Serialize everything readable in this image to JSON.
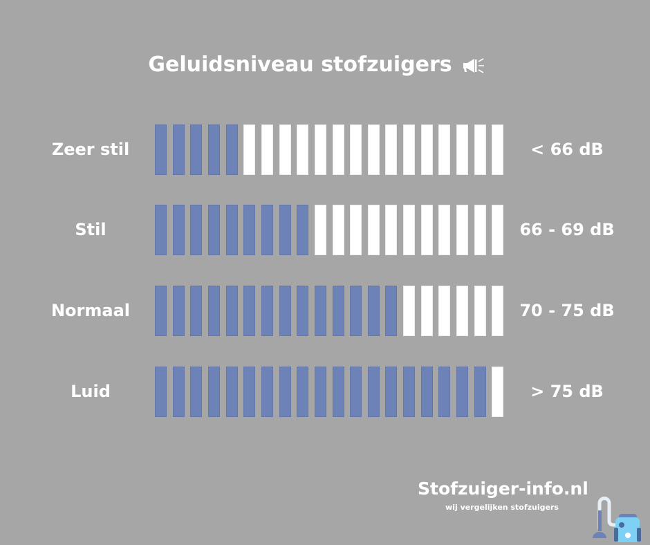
{
  "chart_data": {
    "type": "bar",
    "title": "Geluidsniveau stofzuigers",
    "title_icon": "megaphone-icon",
    "total_segments": 20,
    "categories": [
      "Zeer stil",
      "Stil",
      "Normaal",
      "Luid"
    ],
    "values": [
      5,
      9,
      14,
      19
    ],
    "range_labels": [
      "< 66 dB",
      "66 - 69 dB",
      "70 - 75 dB",
      "> 75 dB"
    ],
    "colors": {
      "filled": "#6d82b6",
      "empty": "#ffffff",
      "background": "#a6a6a6"
    }
  },
  "brand": {
    "name": "Stofzuiger-info.nl",
    "tagline": "wij vergelijken stofzuigers",
    "icon": "vacuum-cleaner-icon"
  }
}
